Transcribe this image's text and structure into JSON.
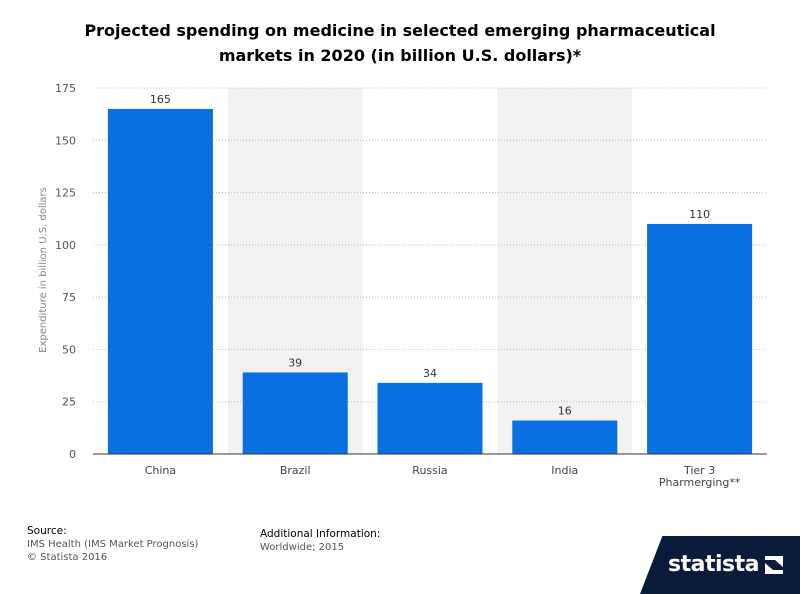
{
  "title_line1": "Projected spending on medicine in selected emerging pharmaceutical",
  "title_line2": "markets in 2020 (in billion U.S. dollars)*",
  "chart_data": {
    "type": "bar",
    "categories": [
      "China",
      "Brazil",
      "Russia",
      "India",
      "Tier 3 Pharmerging**"
    ],
    "category_lines": [
      [
        "China"
      ],
      [
        "Brazil"
      ],
      [
        "Russia"
      ],
      [
        "India"
      ],
      [
        "Tier 3",
        "Pharmerging**"
      ]
    ],
    "values": [
      165,
      39,
      34,
      16,
      110
    ],
    "ylabel": "Expenditure in billion U.S. dollars",
    "xlabel": "",
    "ylim": [
      0,
      175
    ],
    "yticks": [
      0,
      25,
      50,
      75,
      100,
      125,
      150,
      175
    ],
    "grid": true,
    "bar_color": "#0a6fe0",
    "band_color": "#f2f2f2"
  },
  "footer": {
    "source_label": "Source:",
    "source_line1": "IMS Health (IMS Market Prognosis)",
    "source_line2": "© Statista 2016",
    "additional_label": "Additional Information:",
    "additional_text": "Worldwide; 2015"
  },
  "brand": {
    "name": "statista",
    "color": "#0a1a3a"
  }
}
